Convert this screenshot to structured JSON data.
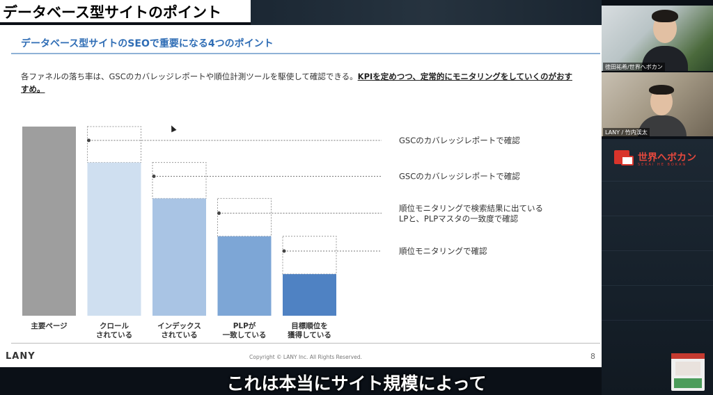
{
  "title_banner": "データベース型サイトのポイント",
  "slide": {
    "heading": "データベース型サイトのSEOで重要になる4つのポイント",
    "intro_plain": "各ファネルの落ち率は、GSCのカバレッジレポートや順位計測ツールを駆使して確認できる。",
    "intro_emphasis": "KPIを定めつつ、定常的にモニタリングをしていくのがおすすめ。",
    "footer_brand": "LANY",
    "footer_copyright": "Copyright © LANY Inc. All Rights Reserved.",
    "page_number": "8"
  },
  "funnel": {
    "stages": [
      {
        "label_lines": [
          "主要ページ"
        ],
        "remaining_fraction": 1.0,
        "color": "#9e9e9e"
      },
      {
        "label_lines": [
          "クロール",
          "されている"
        ],
        "remaining_fraction": 0.81,
        "color": "#cfdff0"
      },
      {
        "label_lines": [
          "インデックス",
          "されている"
        ],
        "remaining_fraction": 0.62,
        "color": "#a9c4e4"
      },
      {
        "label_lines": [
          "PLPが",
          "一致している"
        ],
        "remaining_fraction": 0.42,
        "color": "#7da6d6"
      },
      {
        "label_lines": [
          "目標順位を",
          "獲得している"
        ],
        "remaining_fraction": 0.22,
        "color": "#4f82c3"
      }
    ],
    "notes": [
      {
        "lines": [
          "GSCのカバレッジレポートで確認"
        ]
      },
      {
        "lines": [
          "GSCのカバレッジレポートで確認"
        ]
      },
      {
        "lines": [
          "順位モニタリングで検索結果に出ている",
          "LPと、PLPマスタの一致度で確認"
        ]
      },
      {
        "lines": [
          "順位モニタリングで確認"
        ]
      }
    ]
  },
  "cameras": [
    {
      "label": "徳田祐希/世界へボカン"
    },
    {
      "label": "LANY / 竹内渓太"
    }
  ],
  "brand_panel": {
    "name": "世界へボカン",
    "tagline": "SEKAI HE BOKAN"
  },
  "subtitle": "これは本当にサイト規模によって",
  "colors": {
    "heading_blue": "#2f6db5",
    "brand_red": "#e4483d"
  }
}
